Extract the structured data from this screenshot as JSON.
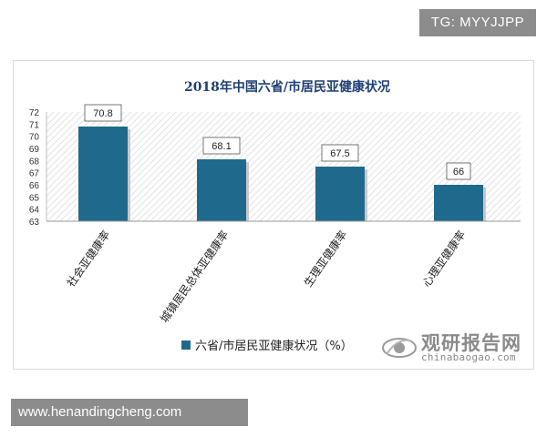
{
  "tag": "TG: MYYJJPP",
  "footer": "www.henandingcheng.com",
  "watermark": {
    "title": "观研报告网",
    "url": "chinabaogao.com"
  },
  "colors": {
    "bar": "#1f6a8c",
    "bar_shadow": "#c9c9c9",
    "title": "#1f3f73",
    "hatch": "#e4e4e4"
  },
  "chart_data": {
    "type": "bar",
    "title": "2018年中国六省/市居民亚健康状况",
    "categories": [
      "社会亚健康率",
      "城镇居民总体亚健康率",
      "生理亚健康率",
      "心理亚健康率"
    ],
    "series": [
      {
        "name": "六省/市居民亚健康状况（%）",
        "values": [
          70.8,
          68.1,
          67.5,
          66
        ]
      }
    ],
    "data_labels": [
      "70.8",
      "68.1",
      "67.5",
      "66"
    ],
    "y_ticks": [
      "63",
      "64",
      "65",
      "66",
      "67",
      "68",
      "69",
      "70",
      "71",
      "72"
    ],
    "ylim": [
      63,
      72
    ],
    "grid": false,
    "legend": "bottom"
  }
}
